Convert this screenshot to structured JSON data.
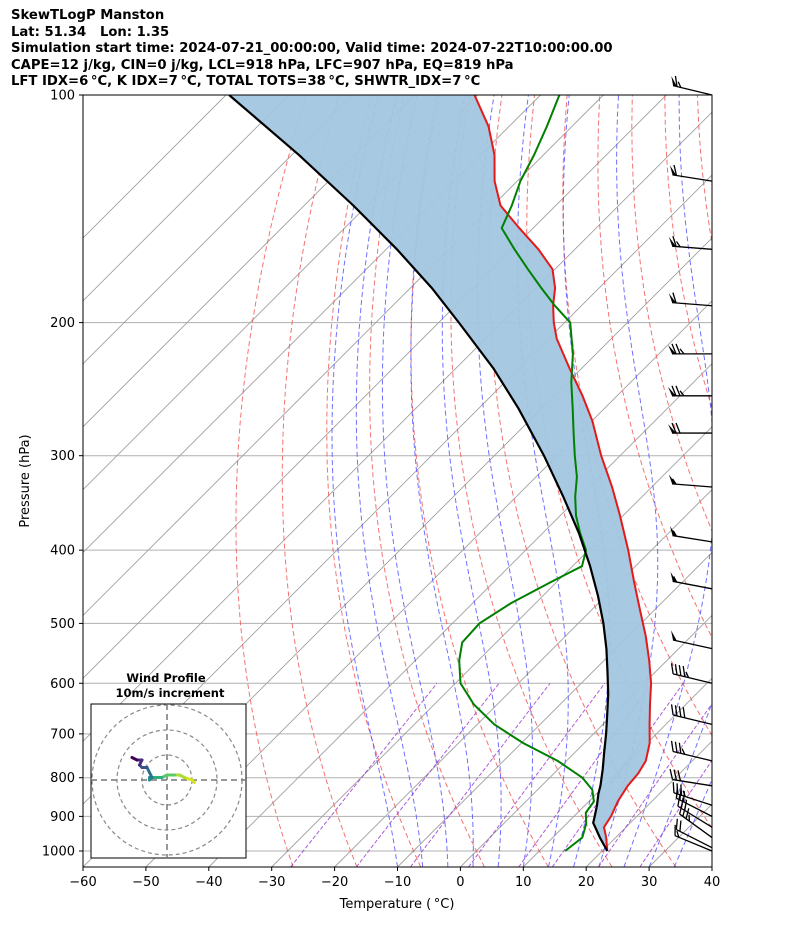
{
  "header": {
    "line1": "SkewTLogP Manston",
    "line2": "Lat: 51.34   Lon: 1.35",
    "line3": "Simulation start time: 2024-07-21_00:00:00, Valid time: 2024-07-22T10:00:00.00",
    "line4": "CAPE=12 j/kg, CIN=0 j/kg, LCL=918 hPa, LFC=907 hPa, EQ=819 hPa",
    "line5": "LFT IDX=6 °C, K IDX=7 °C, TOTAL TOTS=38 °C, SHWTR_IDX=7 °C"
  },
  "colors": {
    "temperature": "#e41a1a",
    "dewpoint": "#008000",
    "parcel": "#000000",
    "cape_fill": "#a2c6e0",
    "dry_adiabat": "#f05050",
    "moist_adiabat": "#4d4dff",
    "mixing_ratio": "#9933cc",
    "isotherm": "#a0a0a0"
  },
  "chart_data": [
    {
      "type": "line",
      "subtype": "skew-t log-p",
      "xlabel": "Temperature ( °C)",
      "ylabel": "Pressure (hPa)",
      "xlim": [
        -60,
        40
      ],
      "ylim": [
        1050,
        100
      ],
      "y_scale": "log",
      "grid": true,
      "x_ticks": [
        -60,
        -50,
        -40,
        -30,
        -20,
        -10,
        0,
        10,
        20,
        30,
        40
      ],
      "y_ticks": [
        100,
        200,
        300,
        400,
        500,
        600,
        700,
        800,
        900,
        1000
      ],
      "x_tick_labels": [
        "−60",
        "−50",
        "−40",
        "−30",
        "−20",
        "−10",
        "0",
        "10",
        "20",
        "30",
        "40"
      ],
      "y_tick_labels": [
        "100",
        "200",
        "300",
        "400",
        "500",
        "600",
        "700",
        "800",
        "900",
        "1000"
      ],
      "series": [
        {
          "id": "temperature",
          "pressure": [
            1000,
            960,
            930,
            900,
            860,
            820,
            790,
            760,
            720,
            680,
            640,
            600,
            560,
            520,
            480,
            440,
            400,
            360,
            330,
            300,
            270,
            250,
            230,
            210,
            200,
            190,
            180,
            170,
            160,
            150,
            140,
            130,
            120,
            110,
            100
          ],
          "values": [
            20.8,
            18.5,
            16.5,
            15.9,
            14.6,
            13.7,
            13.4,
            12.6,
            10.4,
            7.4,
            4.3,
            1.1,
            -2.8,
            -7.2,
            -12.3,
            -17.8,
            -23.7,
            -30.5,
            -36.3,
            -43.0,
            -49.9,
            -55.5,
            -61.9,
            -68.7,
            -71.7,
            -74.5,
            -77.0,
            -80.4,
            -85.8,
            -92.2,
            -98.8,
            -103.6,
            -107.8,
            -113.3,
            -120.5
          ]
        },
        {
          "id": "dewpoint",
          "pressure": [
            1000,
            960,
            920,
            890,
            860,
            830,
            800,
            760,
            720,
            680,
            640,
            600,
            560,
            530,
            500,
            470,
            440,
            420,
            400,
            380,
            360,
            340,
            320,
            300,
            280,
            260,
            240,
            220,
            200,
            190,
            180,
            170,
            160,
            150,
            140,
            130,
            120,
            110,
            100
          ],
          "values": [
            14.1,
            14.7,
            13.1,
            11.3,
            10.8,
            8.7,
            5.2,
            -1.4,
            -9.7,
            -17.3,
            -23.7,
            -29.2,
            -33.0,
            -35.4,
            -35.7,
            -33.9,
            -30.8,
            -28.5,
            -30.4,
            -34.0,
            -37.5,
            -40.6,
            -43.5,
            -47.2,
            -51.0,
            -55.0,
            -59.4,
            -63.7,
            -69.1,
            -74.2,
            -79.2,
            -84.3,
            -89.6,
            -95.0,
            -97.0,
            -99.5,
            -101.5,
            -104.0,
            -107.0
          ]
        },
        {
          "id": "parcel",
          "pressure": [
            1000,
            960,
            930,
            918,
            900,
            870,
            840,
            819,
            780,
            740,
            700,
            660,
            620,
            580,
            540,
            500,
            460,
            420,
            380,
            340,
            300,
            260,
            230,
            200,
            180,
            160,
            140,
            120,
            100
          ],
          "values": [
            20.8,
            17.5,
            15.1,
            14.1,
            13.3,
            11.9,
            10.3,
            9.3,
            7.1,
            4.6,
            2.0,
            -0.9,
            -4.0,
            -7.6,
            -11.5,
            -16.0,
            -21.2,
            -27.2,
            -34.2,
            -42.5,
            -52.1,
            -63.6,
            -74.0,
            -86.8,
            -96.6,
            -108.3,
            -122.2,
            -138.9,
            -159.5
          ]
        }
      ],
      "shading": {
        "type": "CAPE",
        "between": [
          "parcel",
          "temperature"
        ]
      },
      "wind_barbs": {
        "pressure": [
          100,
          130,
          160,
          190,
          220,
          250,
          280,
          330,
          390,
          450,
          540,
          600,
          680,
          760,
          820,
          870,
          900,
          930,
          960,
          990,
          1000
        ],
        "speed_kt": [
          65,
          60,
          65,
          60,
          75,
          75,
          70,
          55,
          55,
          55,
          50,
          45,
          40,
          35,
          30,
          35,
          30,
          30,
          35,
          20,
          15
        ],
        "direction_deg": [
          255,
          260,
          265,
          265,
          270,
          270,
          270,
          265,
          260,
          258,
          256,
          255,
          255,
          255,
          260,
          250,
          240,
          235,
          230,
          240,
          245
        ]
      }
    },
    {
      "type": "line",
      "subtype": "hodograph",
      "title": "Wind Profile",
      "subtitle": "10m/s increment",
      "rings": [
        10,
        20,
        30
      ],
      "u": [
        11,
        10,
        7,
        5,
        3,
        0,
        -2,
        -5,
        -7,
        -7,
        -6,
        -7,
        -8,
        -10,
        -11,
        -10,
        -12,
        -14
      ],
      "v": [
        -1,
        0,
        1,
        2,
        2,
        2,
        1,
        1,
        1,
        0,
        1,
        3,
        5,
        5,
        6,
        8,
        8,
        9
      ]
    }
  ]
}
